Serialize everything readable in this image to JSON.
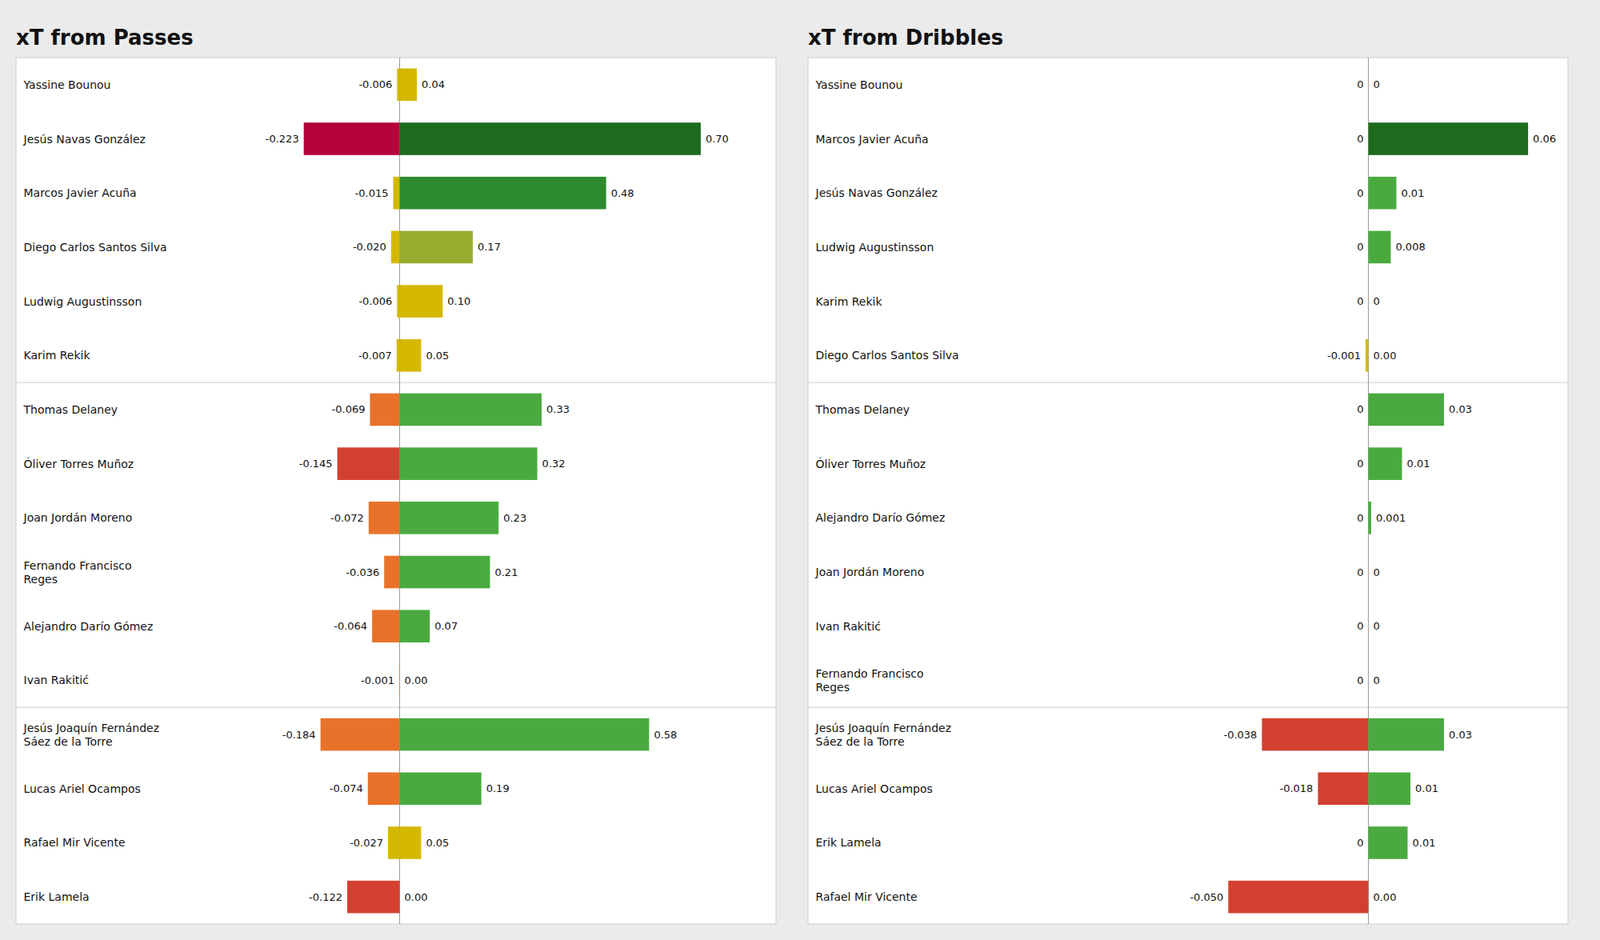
{
  "chart_data": [
    {
      "type": "bar",
      "orientation": "horizontal",
      "title": "xT from Passes",
      "categories": [
        "Yassine Bounou",
        "Jesús Navas González",
        "Marcos Javier Acuña",
        "Diego Carlos Santos Silva",
        "Ludwig Augustinsson",
        "Karim Rekik",
        "Thomas Delaney",
        "Óliver Torres Muñoz",
        "Joan Jordán Moreno",
        "Fernando Francisco\nReges",
        "Alejandro Darío Gómez",
        "Ivan Rakitić",
        "Jesús Joaquín Fernández\nSáez de la Torre",
        "Lucas Ariel Ocampos",
        "Rafael Mir Vicente",
        "Erik Lamela"
      ],
      "groups": [
        0,
        0,
        0,
        0,
        0,
        0,
        1,
        1,
        1,
        1,
        1,
        1,
        2,
        2,
        2,
        2
      ],
      "series": [
        {
          "values": [
            -0.006,
            -0.223,
            -0.015,
            -0.02,
            -0.006,
            -0.007,
            -0.069,
            -0.145,
            -0.072,
            -0.036,
            -0.064,
            -0.001,
            -0.184,
            -0.074,
            -0.027,
            -0.122
          ],
          "value_labels": [
            "-0.006",
            "-0.223",
            "-0.015",
            "-0.020",
            "-0.006",
            "-0.007",
            "-0.069",
            "-0.145",
            "-0.072",
            "-0.036",
            "-0.064",
            "-0.001",
            "-0.184",
            "-0.074",
            "-0.027",
            "-0.122"
          ],
          "colors": [
            "#d4b800",
            "#b5003a",
            "#d4b800",
            "#d4b800",
            "#d4b800",
            "#d4b800",
            "#e8722a",
            "#d44030",
            "#e8722a",
            "#e8722a",
            "#e8722a",
            "#e8722a",
            "#e8722a",
            "#e8722a",
            "#d4b800",
            "#d44030"
          ]
        },
        {
          "values": [
            0.04,
            0.7,
            0.48,
            0.17,
            0.1,
            0.05,
            0.33,
            0.32,
            0.23,
            0.21,
            0.07,
            0.0,
            0.58,
            0.19,
            0.05,
            0.0
          ],
          "value_labels": [
            "0.04",
            "0.70",
            "0.48",
            "0.17",
            "0.10",
            "0.05",
            "0.33",
            "0.32",
            "0.23",
            "0.21",
            "0.07",
            "0.00",
            "0.58",
            "0.19",
            "0.05",
            "0.00"
          ],
          "colors": [
            "#d4b800",
            "#1e6b1e",
            "#2d8a2d",
            "#9aac30",
            "#d4b800",
            "#d4b800",
            "#4aaa40",
            "#4aaa40",
            "#4aaa40",
            "#4aaa40",
            "#4aaa40",
            "#d4b800",
            "#4aaa40",
            "#4aaa40",
            "#d4b800",
            "#d4b800"
          ]
        }
      ],
      "xlim": [
        -0.892,
        0.875
      ],
      "data_labels": true,
      "tick_labels": false,
      "grid": false
    },
    {
      "type": "bar",
      "orientation": "horizontal",
      "title": "xT from Dribbles",
      "categories": [
        "Yassine Bounou",
        "Marcos Javier Acuña",
        "Jesús Navas González",
        "Ludwig Augustinsson",
        "Karim Rekik",
        "Diego Carlos Santos Silva",
        "Thomas Delaney",
        "Óliver Torres Muñoz",
        "Alejandro Darío Gómez",
        "Joan Jordán Moreno",
        "Ivan Rakitić",
        "Fernando Francisco\nReges",
        "Jesús Joaquín Fernández\nSáez de la Torre",
        "Lucas Ariel Ocampos",
        "Erik Lamela",
        "Rafael Mir Vicente"
      ],
      "groups": [
        0,
        0,
        0,
        0,
        0,
        0,
        1,
        1,
        1,
        1,
        1,
        1,
        2,
        2,
        2,
        2
      ],
      "series": [
        {
          "values": [
            0,
            0,
            0,
            0,
            0,
            -0.001,
            0,
            0,
            0,
            0,
            0,
            0,
            -0.038,
            -0.018,
            0,
            -0.05
          ],
          "value_labels": [
            "0",
            "0",
            "0",
            "0",
            "0",
            "-0.001",
            "0",
            "0",
            "0",
            "0",
            "0",
            "0",
            "-0.038",
            "-0.018",
            "0",
            "-0.050"
          ],
          "colors": [
            "#d4b800",
            "#d4b800",
            "#d4b800",
            "#d4b800",
            "#d4b800",
            "#d4b800",
            "#d4b800",
            "#d4b800",
            "#d4b800",
            "#d4b800",
            "#d4b800",
            "#d4b800",
            "#d44030",
            "#d44030",
            "#d4b800",
            "#d44030"
          ]
        },
        {
          "values": [
            0,
            0.057,
            0.01,
            0.008,
            0,
            0,
            0.027,
            0.012,
            0.001,
            0,
            0,
            0,
            0.027,
            0.015,
            0.014,
            0
          ],
          "value_labels": [
            "0",
            "0.06",
            "0.01",
            "0.008",
            "0",
            "0.00",
            "0.03",
            "0.01",
            "0.001",
            "0",
            "0",
            "0",
            "0.03",
            "0.01",
            "0.01",
            "0.00"
          ],
          "colors": [
            "#d4b800",
            "#1e6b1e",
            "#4aaa40",
            "#4aaa40",
            "#d4b800",
            "#d4b800",
            "#4aaa40",
            "#4aaa40",
            "#4aaa40",
            "#d4b800",
            "#d4b800",
            "#d4b800",
            "#4aaa40",
            "#4aaa40",
            "#4aaa40",
            "#d4b800"
          ]
        }
      ],
      "xlim": [
        -0.2,
        0.07125
      ],
      "data_labels": true,
      "tick_labels": false,
      "grid": false
    }
  ]
}
